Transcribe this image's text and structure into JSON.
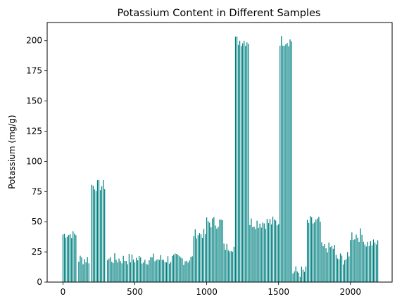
{
  "chart_data": {
    "type": "bar",
    "title": "Potassium Content in Different Samples",
    "xlabel": "",
    "ylabel": "Potassium (mg/g)",
    "xlim": [
      -110,
      2290
    ],
    "ylim": [
      0,
      215
    ],
    "xticks": [
      0,
      500,
      1000,
      1500,
      2000
    ],
    "yticks": [
      0,
      25,
      50,
      75,
      100,
      125,
      150,
      175,
      200
    ],
    "grid": false,
    "bar_color": "#008080",
    "bar_width": 6,
    "groups": [
      {
        "x_start": 0,
        "x_end": 90,
        "low": 36,
        "high": 43
      },
      {
        "x_start": 110,
        "x_end": 180,
        "low": 14,
        "high": 24
      },
      {
        "x_start": 200,
        "x_end": 290,
        "low": 75,
        "high": 85
      },
      {
        "x_start": 310,
        "x_end": 900,
        "low": 14,
        "high": 24
      },
      {
        "x_start": 910,
        "x_end": 990,
        "low": 36,
        "high": 44
      },
      {
        "x_start": 1000,
        "x_end": 1110,
        "low": 44,
        "high": 55
      },
      {
        "x_start": 1120,
        "x_end": 1190,
        "low": 25,
        "high": 33
      },
      {
        "x_start": 1200,
        "x_end": 1290,
        "low": 195,
        "high": 205
      },
      {
        "x_start": 1300,
        "x_end": 1500,
        "low": 44,
        "high": 55
      },
      {
        "x_start": 1510,
        "x_end": 1590,
        "low": 195,
        "high": 205
      },
      {
        "x_start": 1600,
        "x_end": 1690,
        "low": 3,
        "high": 14
      },
      {
        "x_start": 1700,
        "x_end": 1790,
        "low": 44,
        "high": 55
      },
      {
        "x_start": 1800,
        "x_end": 1890,
        "low": 24,
        "high": 33
      },
      {
        "x_start": 1900,
        "x_end": 1990,
        "low": 14,
        "high": 25
      },
      {
        "x_start": 2000,
        "x_end": 2090,
        "low": 33,
        "high": 45
      },
      {
        "x_start": 2100,
        "x_end": 2190,
        "low": 28,
        "high": 36
      }
    ]
  }
}
